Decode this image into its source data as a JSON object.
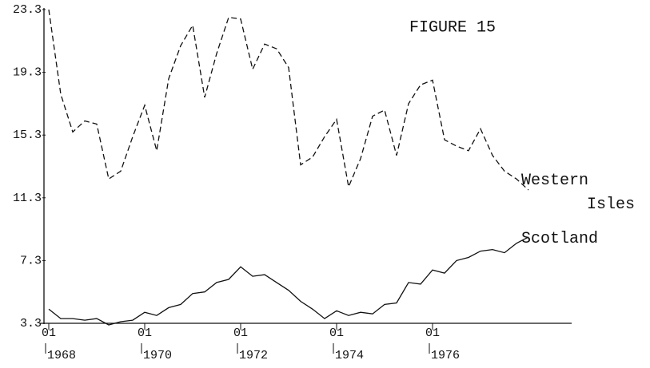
{
  "chart_data": {
    "type": "line",
    "title": "FIGURE 15",
    "x": [
      1968,
      1968.25,
      1968.5,
      1968.75,
      1969,
      1969.25,
      1969.5,
      1969.75,
      1970,
      1970.25,
      1970.5,
      1970.75,
      1971,
      1971.25,
      1971.5,
      1971.75,
      1972,
      1972.25,
      1972.5,
      1972.75,
      1973,
      1973.25,
      1973.5,
      1973.75,
      1974,
      1974.25,
      1974.5,
      1974.75,
      1975,
      1975.25,
      1975.5,
      1975.75,
      1976,
      1976.25,
      1976.5,
      1976.75,
      1977,
      1977.25,
      1977.5,
      1977.75,
      1978
    ],
    "series": [
      {
        "name": "Western Isles",
        "color": "#111111",
        "dashed": true,
        "values": [
          23.3,
          17.9,
          15.5,
          16.2,
          16.0,
          12.5,
          13.0,
          15.2,
          17.2,
          14.3,
          18.9,
          21.0,
          22.3,
          17.7,
          20.5,
          22.8,
          22.7,
          19.5,
          21.1,
          20.8,
          19.6,
          13.4,
          13.9,
          15.2,
          16.3,
          12.0,
          13.8,
          16.5,
          16.9,
          14.0,
          17.3,
          18.5,
          18.8,
          15.0,
          14.6,
          14.3,
          15.7,
          14.0,
          13.0,
          12.5,
          11.8
        ]
      },
      {
        "name": "Scotland",
        "color": "#111111",
        "dashed": false,
        "values": [
          4.2,
          3.6,
          3.6,
          3.5,
          3.6,
          3.2,
          3.4,
          3.5,
          4.0,
          3.8,
          4.3,
          4.5,
          5.2,
          5.3,
          5.9,
          6.1,
          6.9,
          6.3,
          6.4,
          5.9,
          5.4,
          4.7,
          4.2,
          3.6,
          4.1,
          3.8,
          4.0,
          3.9,
          4.5,
          4.6,
          5.9,
          5.8,
          6.7,
          6.5,
          7.3,
          7.5,
          7.9,
          8.0,
          7.8,
          8.4,
          8.8
        ]
      }
    ],
    "xlim": [
      1967.9,
      1978.9
    ],
    "xticks": [
      1968,
      1970,
      1972,
      1974,
      1976
    ],
    "xtick_month": "01",
    "ylim": [
      3.3,
      23.3
    ],
    "yticks": [
      3.3,
      7.3,
      11.3,
      15.3,
      19.3,
      23.3
    ]
  }
}
